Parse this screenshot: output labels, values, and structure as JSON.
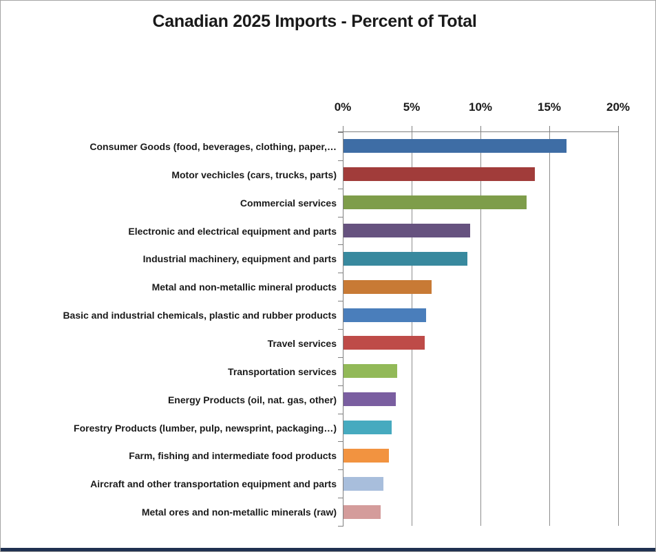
{
  "chart_data": {
    "type": "bar",
    "orientation": "horizontal",
    "title": "Canadian 2025 Imports - Percent of Total",
    "xlabel": "",
    "ylabel": "",
    "x_axis": {
      "position": "top",
      "tick_labels": [
        "0%",
        "5%",
        "10%",
        "15%",
        "20%"
      ],
      "tick_values": [
        0,
        5,
        10,
        15,
        20
      ],
      "range": [
        0,
        20
      ],
      "unit": "percent"
    },
    "grid": true,
    "legend": false,
    "categories": [
      "Consumer Goods (food, beverages, clothing, paper,…",
      "Motor vechicles (cars, trucks, parts)",
      "Commercial services",
      "Electronic and electrical equipment and parts",
      "Industrial machinery, equipment and parts",
      "Metal and non-metallic mineral products",
      "Basic and industrial chemicals, plastic and rubber products",
      "Travel services",
      "Transportation services",
      "Energy Products (oil, nat. gas, other)",
      "Forestry Products (lumber, pulp, newsprint, packaging…)",
      "Farm, fishing and intermediate food products",
      "Aircraft and other transportation equipment and parts",
      "Metal ores and non-metallic minerals (raw)"
    ],
    "values": [
      16.2,
      13.9,
      13.3,
      9.2,
      9.0,
      6.4,
      6.0,
      5.9,
      3.9,
      3.8,
      3.5,
      3.3,
      2.9,
      2.7
    ],
    "bar_colors": [
      "#3e6da5",
      "#a13c3a",
      "#7e9d4a",
      "#66527f",
      "#38899e",
      "#c87a35",
      "#4a7ebb",
      "#be4b48",
      "#92b958",
      "#7a5ea0",
      "#46aabf",
      "#f29340",
      "#a8bedc",
      "#d49c9b"
    ]
  },
  "style_colors": {
    "text": "#1a1a1a",
    "axis_line": "#7f7f7f",
    "gridline": "#8c8c8c",
    "frame_border": "#a3a3a3",
    "bottom_accent": "#1f3050",
    "background": "#ffffff"
  }
}
